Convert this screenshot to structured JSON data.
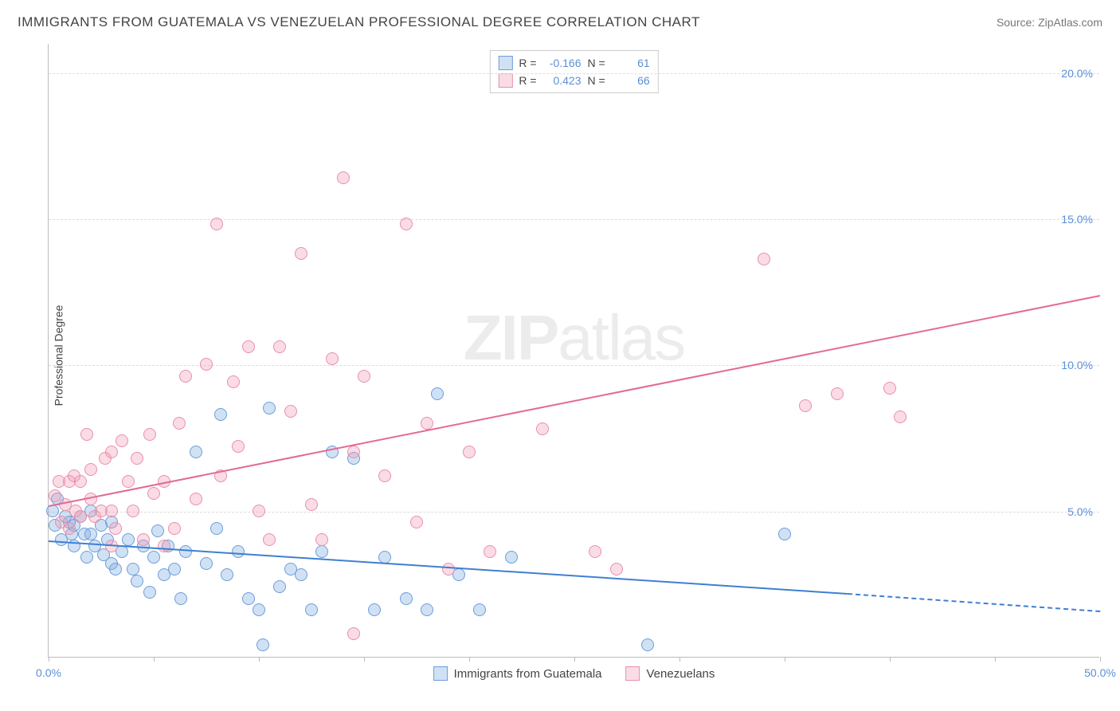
{
  "header": {
    "title": "IMMIGRANTS FROM GUATEMALA VS VENEZUELAN PROFESSIONAL DEGREE CORRELATION CHART",
    "source": "Source: ZipAtlas.com"
  },
  "chart": {
    "type": "scatter",
    "ylabel": "Professional Degree",
    "xlim": [
      0,
      50
    ],
    "ylim": [
      0,
      21
    ],
    "xtick_step": 5,
    "xtick_labels_shown": {
      "0": "0.0%",
      "50": "50.0%"
    },
    "ytick_step": 5,
    "ytick_labels_shown": {
      "5": "5.0%",
      "10": "10.0%",
      "15": "15.0%",
      "20": "20.0%"
    },
    "background_color": "#ffffff",
    "grid_color": "#dddddd",
    "axis_color": "#bbbbbb",
    "tick_label_color": "#5b8fd6",
    "label_fontsize": 14,
    "point_radius": 8,
    "series": [
      {
        "name": "Immigrants from Guatemala",
        "fill": "rgba(122,168,224,0.35)",
        "stroke": "#6a9edb",
        "trend_color": "#3f7fd1",
        "R": "-0.166",
        "N": "61",
        "trend": {
          "x1": 0,
          "y1": 4.0,
          "x2": 38,
          "y2": 2.2,
          "dash_to_x": 50,
          "dash_to_y": 1.6
        },
        "points": [
          [
            0.2,
            5.0
          ],
          [
            0.3,
            4.5
          ],
          [
            0.4,
            5.4
          ],
          [
            0.6,
            4.0
          ],
          [
            0.8,
            4.8
          ],
          [
            1.0,
            4.6
          ],
          [
            1.1,
            4.2
          ],
          [
            1.2,
            3.8
          ],
          [
            1.2,
            4.5
          ],
          [
            1.5,
            4.8
          ],
          [
            1.7,
            4.2
          ],
          [
            1.8,
            3.4
          ],
          [
            2.0,
            4.2
          ],
          [
            2.0,
            5.0
          ],
          [
            2.2,
            3.8
          ],
          [
            2.5,
            4.5
          ],
          [
            2.6,
            3.5
          ],
          [
            2.8,
            4.0
          ],
          [
            3.0,
            4.6
          ],
          [
            3.0,
            3.2
          ],
          [
            3.2,
            3.0
          ],
          [
            3.5,
            3.6
          ],
          [
            3.8,
            4.0
          ],
          [
            4.0,
            3.0
          ],
          [
            4.2,
            2.6
          ],
          [
            4.5,
            3.8
          ],
          [
            4.8,
            2.2
          ],
          [
            5.0,
            3.4
          ],
          [
            5.2,
            4.3
          ],
          [
            5.5,
            2.8
          ],
          [
            5.7,
            3.8
          ],
          [
            6.0,
            3.0
          ],
          [
            6.3,
            2.0
          ],
          [
            6.5,
            3.6
          ],
          [
            7.0,
            7.0
          ],
          [
            7.5,
            3.2
          ],
          [
            8.0,
            4.4
          ],
          [
            8.2,
            8.3
          ],
          [
            8.5,
            2.8
          ],
          [
            9.0,
            3.6
          ],
          [
            9.5,
            2.0
          ],
          [
            10.0,
            1.6
          ],
          [
            10.2,
            0.4
          ],
          [
            10.5,
            8.5
          ],
          [
            11.0,
            2.4
          ],
          [
            11.5,
            3.0
          ],
          [
            12.0,
            2.8
          ],
          [
            12.5,
            1.6
          ],
          [
            13.0,
            3.6
          ],
          [
            13.5,
            7.0
          ],
          [
            14.5,
            6.8
          ],
          [
            15.5,
            1.6
          ],
          [
            16.0,
            3.4
          ],
          [
            17.0,
            2.0
          ],
          [
            18.0,
            1.6
          ],
          [
            18.5,
            9.0
          ],
          [
            19.5,
            2.8
          ],
          [
            20.5,
            1.6
          ],
          [
            22.0,
            3.4
          ],
          [
            28.5,
            0.4
          ],
          [
            35.0,
            4.2
          ]
        ]
      },
      {
        "name": "Venezuelans",
        "fill": "rgba(241,154,178,0.35)",
        "stroke": "#e98fae",
        "trend_color": "#e36a93",
        "R": "0.423",
        "N": "66",
        "trend": {
          "x1": 0,
          "y1": 5.2,
          "x2": 50,
          "y2": 12.4
        },
        "points": [
          [
            0.3,
            5.5
          ],
          [
            0.5,
            6.0
          ],
          [
            0.6,
            4.6
          ],
          [
            0.8,
            5.2
          ],
          [
            1.0,
            6.0
          ],
          [
            1.0,
            4.4
          ],
          [
            1.2,
            6.2
          ],
          [
            1.3,
            5.0
          ],
          [
            1.5,
            6.0
          ],
          [
            1.5,
            4.8
          ],
          [
            1.8,
            7.6
          ],
          [
            2.0,
            5.4
          ],
          [
            2.0,
            6.4
          ],
          [
            2.2,
            4.8
          ],
          [
            2.5,
            5.0
          ],
          [
            2.7,
            6.8
          ],
          [
            3.0,
            7.0
          ],
          [
            3.0,
            5.0
          ],
          [
            3.2,
            4.4
          ],
          [
            3.5,
            7.4
          ],
          [
            3.8,
            6.0
          ],
          [
            4.0,
            5.0
          ],
          [
            4.2,
            6.8
          ],
          [
            4.5,
            4.0
          ],
          [
            4.8,
            7.6
          ],
          [
            5.0,
            5.6
          ],
          [
            5.5,
            6.0
          ],
          [
            6.0,
            4.4
          ],
          [
            6.2,
            8.0
          ],
          [
            6.5,
            9.6
          ],
          [
            7.0,
            5.4
          ],
          [
            7.5,
            10.0
          ],
          [
            8.0,
            14.8
          ],
          [
            8.2,
            6.2
          ],
          [
            8.8,
            9.4
          ],
          [
            9.0,
            7.2
          ],
          [
            9.5,
            10.6
          ],
          [
            10.0,
            5.0
          ],
          [
            10.5,
            4.0
          ],
          [
            11.0,
            10.6
          ],
          [
            11.5,
            8.4
          ],
          [
            12.0,
            13.8
          ],
          [
            12.5,
            5.2
          ],
          [
            13.0,
            4.0
          ],
          [
            13.5,
            10.2
          ],
          [
            14.0,
            16.4
          ],
          [
            14.5,
            7.0
          ],
          [
            15.0,
            9.6
          ],
          [
            16.0,
            6.2
          ],
          [
            17.0,
            14.8
          ],
          [
            17.5,
            4.6
          ],
          [
            18.0,
            8.0
          ],
          [
            19.0,
            3.0
          ],
          [
            20.0,
            7.0
          ],
          [
            21.0,
            3.6
          ],
          [
            23.5,
            7.8
          ],
          [
            26.0,
            3.6
          ],
          [
            27.0,
            3.0
          ],
          [
            34.0,
            13.6
          ],
          [
            36.0,
            8.6
          ],
          [
            37.5,
            9.0
          ],
          [
            40.0,
            9.2
          ],
          [
            40.5,
            8.2
          ],
          [
            14.5,
            0.8
          ],
          [
            5.5,
            3.8
          ],
          [
            3.0,
            3.8
          ]
        ]
      }
    ],
    "watermark": {
      "bold": "ZIP",
      "light": "atlas"
    }
  }
}
